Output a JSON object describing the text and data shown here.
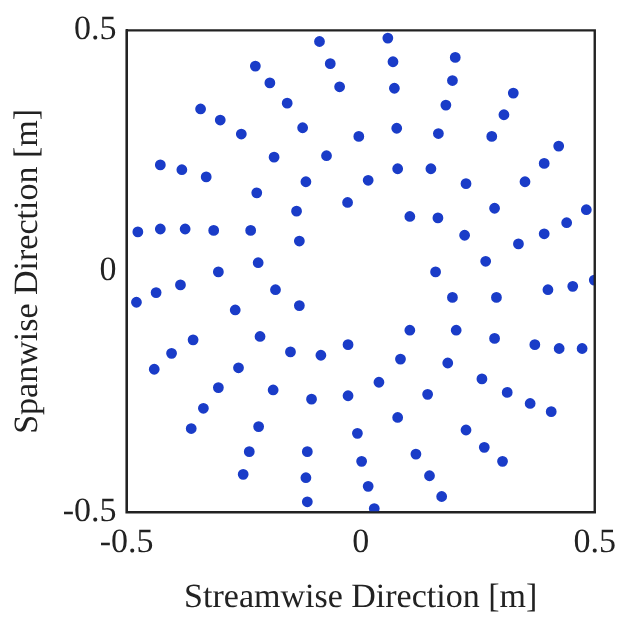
{
  "chart_data": {
    "type": "scatter",
    "xlabel": "Streamwise Direction [m]",
    "ylabel": "Spanwise Direction [m]",
    "color": "#1a3cc8",
    "marker": "circle",
    "grid": false,
    "legend": false,
    "xlim": [
      -0.5,
      0.5
    ],
    "ylim": [
      -0.5,
      0.5
    ],
    "xticks": [
      -0.5,
      0,
      0.5
    ],
    "yticks": [
      -0.5,
      0,
      0.5
    ],
    "x": [
      -0.088,
      -0.065,
      -0.045,
      -0.225,
      -0.194,
      -0.157,
      -0.124,
      -0.342,
      -0.3,
      -0.255,
      -0.004,
      -0.185,
      -0.073,
      -0.428,
      -0.382,
      -0.33,
      -0.117,
      -0.222,
      -0.028,
      -0.137,
      -0.476,
      -0.428,
      -0.375,
      -0.314,
      -0.235,
      -0.131,
      -0.219,
      0.058,
      0.069,
      0.072,
      0.202,
      0.196,
      0.182,
      0.166,
      0.326,
      0.306,
      0.28,
      0.077,
      0.423,
      0.392,
      0.351,
      0.079,
      0.15,
      0.225,
      0.016,
      0.482,
      0.44,
      0.392,
      0.337,
      0.286,
      0.105,
      0.165,
      0.222,
      0.267,
      -0.304,
      -0.479,
      -0.437,
      -0.385,
      -0.182,
      -0.268,
      -0.131,
      -0.358,
      -0.404,
      -0.441,
      -0.215,
      -0.15,
      -0.085,
      -0.027,
      -0.261,
      -0.304,
      -0.336,
      -0.362,
      -0.187,
      -0.105,
      -0.027,
      -0.218,
      -0.238,
      -0.251,
      -0.114,
      -0.117,
      -0.114,
      -0.007,
      0.002,
      0.16,
      0.4,
      0.453,
      0.499,
      0.196,
      0.29,
      0.105,
      0.204,
      0.286,
      0.372,
      0.424,
      0.473,
      0.085,
      0.186,
      0.039,
      0.143,
      0.259,
      0.313,
      0.362,
      0.407,
      0.079,
      0.225,
      0.264,
      0.303,
      0.118,
      0.147,
      0.173,
      0.016,
      0.029
    ],
    "values": [
      0.477,
      0.431,
      0.383,
      0.426,
      0.391,
      0.349,
      0.298,
      0.337,
      0.314,
      0.285,
      0.28,
      0.237,
      0.24,
      0.221,
      0.211,
      0.196,
      0.186,
      0.163,
      0.143,
      0.125,
      0.082,
      0.088,
      0.088,
      0.085,
      0.085,
      0.063,
      0.018,
      0.484,
      0.435,
      0.38,
      0.444,
      0.396,
      0.345,
      0.286,
      0.37,
      0.325,
      0.28,
      0.297,
      0.26,
      0.224,
      0.186,
      0.213,
      0.213,
      0.182,
      0.189,
      0.128,
      0.101,
      0.078,
      0.057,
      0.131,
      0.114,
      0.111,
      0.075,
      0.021,
      -0.001,
      -0.064,
      -0.044,
      -0.028,
      -0.038,
      -0.08,
      -0.071,
      -0.142,
      -0.17,
      -0.203,
      -0.135,
      -0.167,
      -0.174,
      -0.152,
      -0.2,
      -0.241,
      -0.284,
      -0.326,
      -0.246,
      -0.265,
      -0.258,
      -0.322,
      -0.374,
      -0.421,
      -0.374,
      -0.428,
      -0.478,
      -0.336,
      -0.394,
      -0.001,
      -0.038,
      -0.031,
      -0.018,
      -0.054,
      -0.054,
      -0.122,
      -0.122,
      -0.139,
      -0.152,
      -0.16,
      -0.16,
      -0.182,
      -0.19,
      -0.23,
      -0.255,
      -0.223,
      -0.251,
      -0.274,
      -0.291,
      -0.303,
      -0.329,
      -0.365,
      -0.394,
      -0.379,
      -0.424,
      -0.467,
      -0.446,
      -0.492
    ]
  }
}
